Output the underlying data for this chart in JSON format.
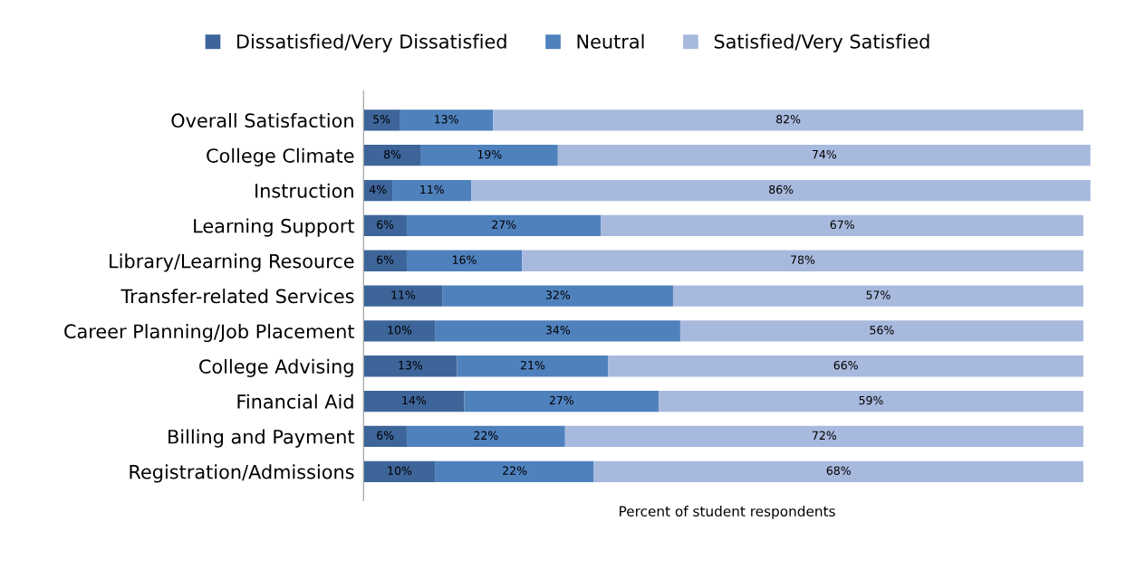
{
  "chart_data": {
    "type": "bar",
    "orientation": "horizontal",
    "stacked": true,
    "xlabel": "Percent of student respondents",
    "legend": "top",
    "grid": false,
    "tick_labels": "y",
    "categories": [
      "Overall Satisfaction",
      "College Climate",
      "Instruction",
      "Learning Support",
      "Library/Learning Resource",
      "Transfer-related Services",
      "Career Planning/Job Placement",
      "College Advising",
      "Financial Aid",
      "Billing and Payment",
      "Registration/Admissions"
    ],
    "series": [
      {
        "name": "Dissatisfied/Very Dissatisfied",
        "color": "#3d6599",
        "values": [
          5,
          8,
          4,
          6,
          6,
          11,
          10,
          13,
          14,
          6,
          10
        ],
        "value_labels": [
          "5%",
          "8%",
          "4%",
          "6%",
          "6%",
          "11%",
          "10%",
          "13%",
          "14%",
          "6%",
          "10%"
        ]
      },
      {
        "name": "Neutral",
        "color": "#4f81bd",
        "values": [
          13,
          19,
          11,
          27,
          16,
          32,
          34,
          21,
          27,
          22,
          22
        ],
        "value_labels": [
          "13%",
          "19%",
          "11%",
          "27%",
          "16%",
          "32%",
          "34%",
          "21%",
          "27%",
          "22%",
          "22%"
        ]
      },
      {
        "name": "Satisfied/Very Satisfied",
        "color": "#a8b9de",
        "values": [
          82,
          74,
          86,
          67,
          78,
          57,
          56,
          66,
          59,
          72,
          68
        ],
        "value_labels": [
          "82%",
          "74%",
          "86%",
          "67%",
          "78%",
          "57%",
          "56%",
          "66%",
          "59%",
          "72%",
          "68%"
        ]
      }
    ]
  }
}
